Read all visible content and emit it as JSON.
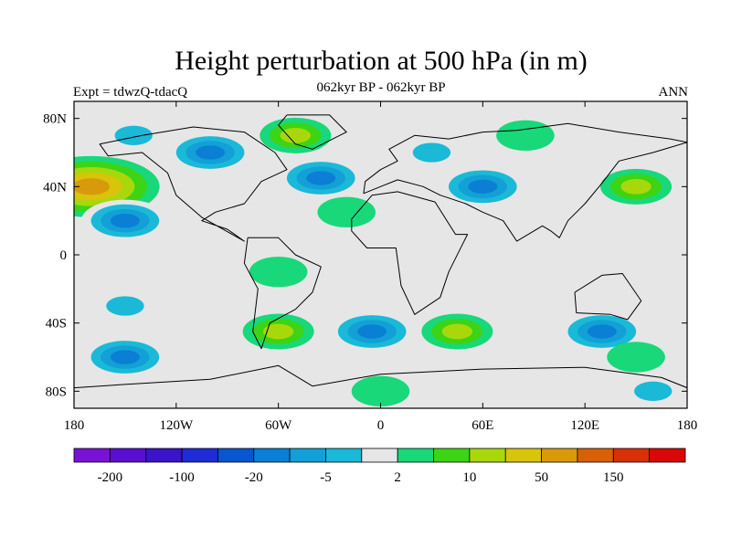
{
  "header": {
    "title": "Height perturbation at 500 hPa (in m)",
    "subtitle": "062kyr BP - 062kyr BP",
    "left_label": "Expt = tdwzQ-tdacQ",
    "right_label": "ANN"
  },
  "map": {
    "projection": "cylindrical-equidistant",
    "lon_range": [
      -180,
      180
    ],
    "lat_range": [
      -90,
      90
    ],
    "x_ticks": [
      {
        "value": -180,
        "label": "180"
      },
      {
        "value": -120,
        "label": "120W"
      },
      {
        "value": -60,
        "label": "60W"
      },
      {
        "value": 0,
        "label": "0"
      },
      {
        "value": 60,
        "label": "60E"
      },
      {
        "value": 120,
        "label": "120E"
      },
      {
        "value": 180,
        "label": "180"
      }
    ],
    "y_ticks": [
      {
        "value": 80,
        "label": "80N"
      },
      {
        "value": 40,
        "label": "40N"
      },
      {
        "value": 0,
        "label": "0"
      },
      {
        "value": -40,
        "label": "40S"
      },
      {
        "value": -80,
        "label": "80S"
      }
    ],
    "background_color": "#e6e6e6",
    "regions": [
      {
        "lon": -170,
        "lat": 40,
        "value": 50
      },
      {
        "lon": -145,
        "lat": 70,
        "value": -5
      },
      {
        "lon": -150,
        "lat": 20,
        "value": -20
      },
      {
        "lon": -100,
        "lat": 60,
        "value": -20
      },
      {
        "lon": -50,
        "lat": 70,
        "value": 10
      },
      {
        "lon": -35,
        "lat": 45,
        "value": -20
      },
      {
        "lon": -20,
        "lat": 25,
        "value": 2
      },
      {
        "lon": 30,
        "lat": 60,
        "value": -5
      },
      {
        "lon": 60,
        "lat": 40,
        "value": -20
      },
      {
        "lon": 85,
        "lat": 70,
        "value": 2
      },
      {
        "lon": 150,
        "lat": 40,
        "value": 10
      },
      {
        "lon": -60,
        "lat": -10,
        "value": 2
      },
      {
        "lon": -150,
        "lat": -30,
        "value": -5
      },
      {
        "lon": -150,
        "lat": -60,
        "value": -20
      },
      {
        "lon": -60,
        "lat": -45,
        "value": 10
      },
      {
        "lon": -5,
        "lat": -45,
        "value": -20
      },
      {
        "lon": 45,
        "lat": -45,
        "value": 10
      },
      {
        "lon": 130,
        "lat": -45,
        "value": -20
      },
      {
        "lon": 150,
        "lat": -60,
        "value": 2
      },
      {
        "lon": 0,
        "lat": -80,
        "value": 2
      },
      {
        "lon": 160,
        "lat": -80,
        "value": -5
      }
    ]
  },
  "colorbar": {
    "colors": [
      "#7a12d6",
      "#5a0fd0",
      "#3a14c8",
      "#1e2bd6",
      "#0a55d0",
      "#0a7fd4",
      "#12a0d6",
      "#1ab9d8",
      "#e6e6e6",
      "#18d87a",
      "#3cd414",
      "#a8d80c",
      "#d8c40a",
      "#d89a0a",
      "#d8600a",
      "#d8300a",
      "#d80808"
    ],
    "labels": [
      {
        "index": 1,
        "text": "-200"
      },
      {
        "index": 3,
        "text": "-100"
      },
      {
        "index": 5,
        "text": "-20"
      },
      {
        "index": 7,
        "text": "-5"
      },
      {
        "index": 9,
        "text": "2"
      },
      {
        "index": 11,
        "text": "10"
      },
      {
        "index": 13,
        "text": "50"
      },
      {
        "index": 15,
        "text": "150"
      }
    ]
  }
}
